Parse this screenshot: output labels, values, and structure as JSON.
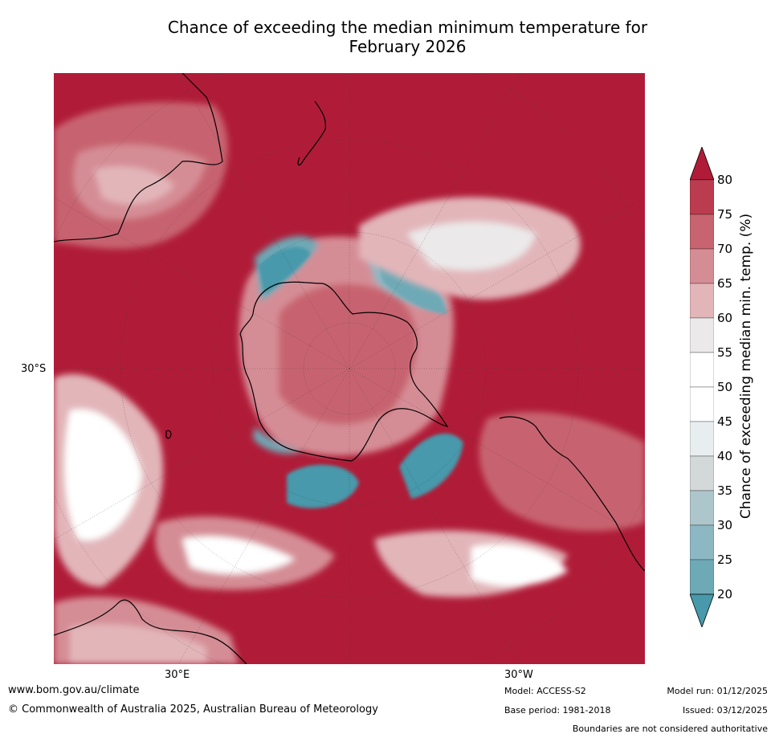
{
  "title_line1": "Chance of exceeding the median minimum temperature for",
  "title_line2": "February 2026",
  "map": {
    "projection_center": "South Pole",
    "graticule": {
      "lat_label": "30°S",
      "lon_label_left": "30°E",
      "lon_label_right": "30°W"
    },
    "background_color": "#b01c38",
    "coastline_color": "#000000"
  },
  "colorbar": {
    "label": "Chance of exceeding median min. temp. (%)",
    "ticks": [
      "80",
      "75",
      "70",
      "65",
      "60",
      "55",
      "50",
      "45",
      "40",
      "35",
      "30",
      "25",
      "20"
    ],
    "bins": [
      {
        "range": "75-80",
        "color": "#bc3c4f"
      },
      {
        "range": "70-75",
        "color": "#c76470"
      },
      {
        "range": "65-70",
        "color": "#d58d95"
      },
      {
        "range": "60-65",
        "color": "#e2b5b9"
      },
      {
        "range": "55-60",
        "color": "#ebe9ea"
      },
      {
        "range": "50-55",
        "color": "#ffffff"
      },
      {
        "range": "45-50",
        "color": "#ffffff"
      },
      {
        "range": "40-45",
        "color": "#e8edef"
      },
      {
        "range": "35-40",
        "color": "#d3d8d9"
      },
      {
        "range": "30-35",
        "color": "#adc6cb"
      },
      {
        "range": "25-30",
        "color": "#8db8c3"
      },
      {
        "range": "20-25",
        "color": "#6ea9b6"
      }
    ],
    "over_color": "#b01c38",
    "under_color": "#4799ab"
  },
  "footer": {
    "website": "www.bom.gov.au/climate",
    "copyright": "© Commonwealth of Australia 2025, Australian Bureau of Meteorology",
    "model": "Model: ACCESS-S2",
    "base_period": "Base period: 1981-2018",
    "model_run": "Model run: 01/12/2025",
    "issued": "Issued: 03/12/2025",
    "disclaimer": "Boundaries are not considered authoritative"
  }
}
